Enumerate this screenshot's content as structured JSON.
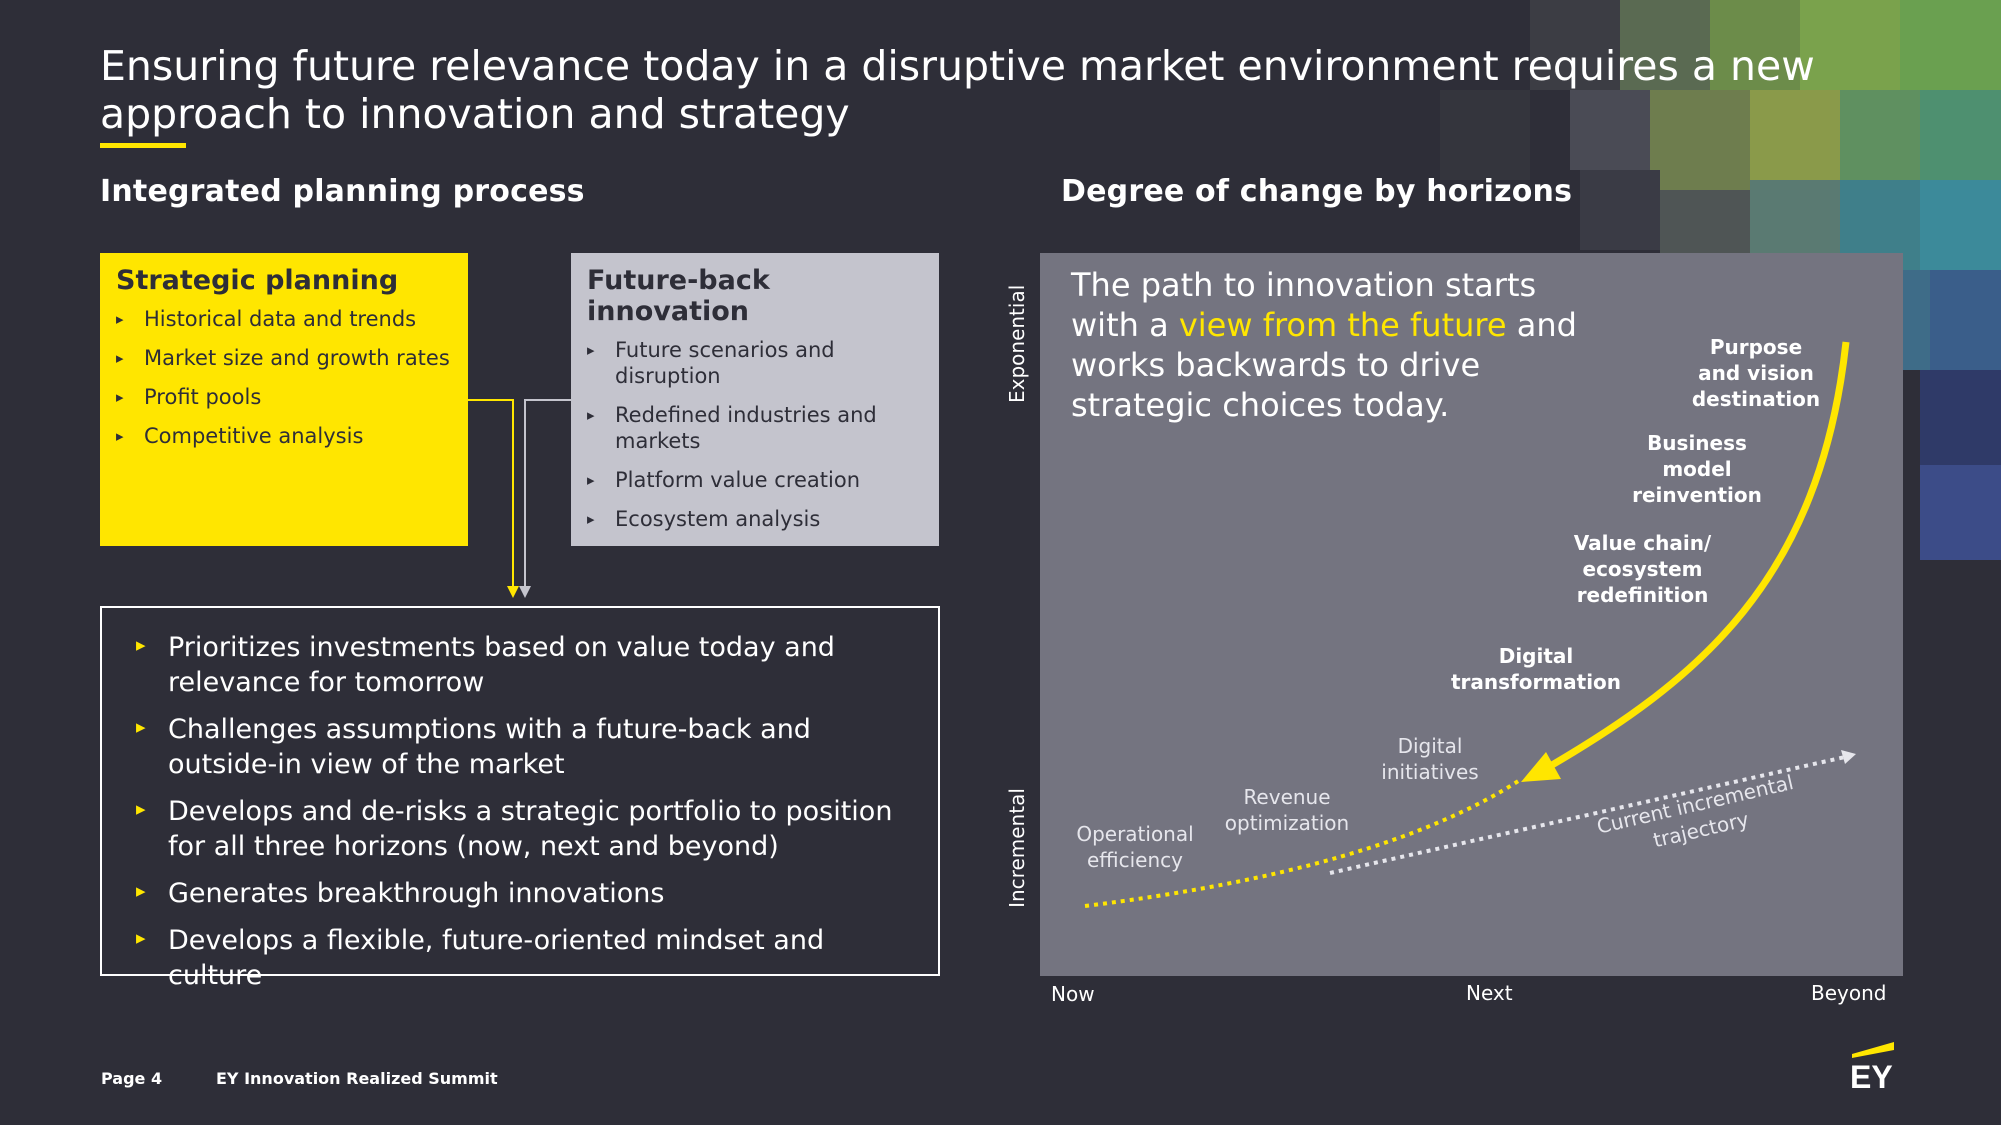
{
  "slide": {
    "title": "Ensuring future relevance today in a disruptive market environment requires a new approach to innovation and strategy",
    "accent_color": "#ffe600",
    "background_color": "#2e2e38"
  },
  "left": {
    "heading": "Integrated planning process",
    "strategic": {
      "title": "Strategic planning",
      "items": [
        "Historical data and trends",
        "Market size and growth rates",
        "Profit pools",
        "Competitive analysis"
      ]
    },
    "future_back": {
      "title": "Future-back innovation",
      "items": [
        "Future scenarios and disruption",
        "Redefined industries and markets",
        "Platform value creation",
        "Ecosystem analysis"
      ]
    },
    "outcomes": [
      "Prioritizes investments based on value today and relevance for tomorrow",
      "Challenges assumptions with a future-back and outside-in view of the market",
      "Develops and de-risks a strategic portfolio to position for all three horizons (now, next and beyond)",
      "Generates breakthrough innovations",
      "Develops a flexible, future-oriented mindset and culture"
    ]
  },
  "right": {
    "heading": "Degree of change by horizons",
    "note": {
      "part1": "The path to innovation starts with a ",
      "highlight": "view from the future",
      "part2": " and works backwards to drive strategic choices today."
    },
    "y_axis": {
      "top": "Exponential",
      "bottom": "Incremental"
    },
    "x_axis": {
      "now": "Now",
      "next": "Next",
      "beyond": "Beyond"
    },
    "dotted_labels": {
      "operational": "Operational efficiency",
      "revenue": "Revenue optimization",
      "digital_init": "Digital initiatives"
    },
    "arrow_labels": {
      "digital_transform": "Digital transformation",
      "value_chain": "Value chain/ ecosystem redefinition",
      "business_model": "Business model reinvention",
      "purpose": "Purpose and vision destination"
    },
    "trajectory_label": "Current incremental trajectory"
  },
  "footer": {
    "page": "Page 4",
    "event": "EY Innovation Realized Summit",
    "logo_text": "EY"
  }
}
